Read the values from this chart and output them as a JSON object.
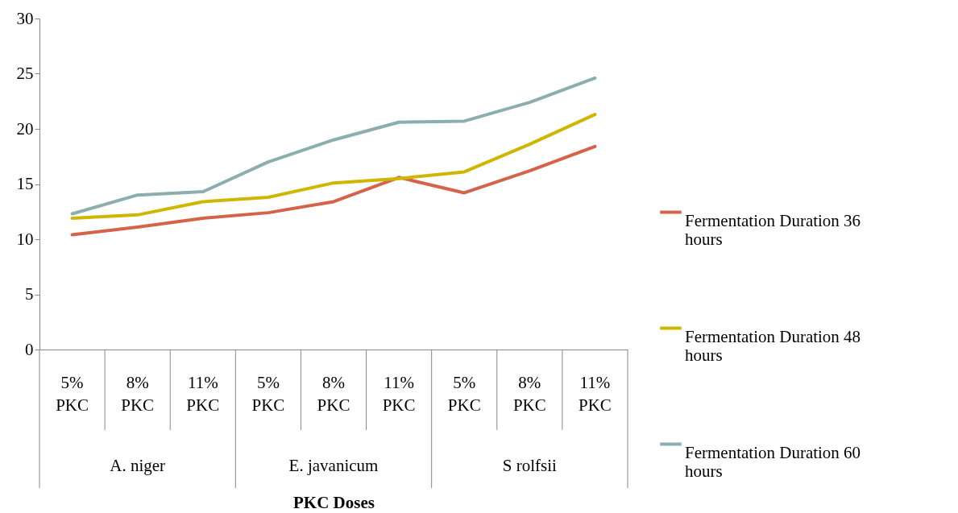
{
  "chart_data": {
    "type": "line",
    "xlabel": "PKC Doses",
    "categories": [
      "5% PKC",
      "8% PKC",
      "11% PKC",
      "5% PKC",
      "8% PKC",
      "11% PKC",
      "5% PKC",
      "8% PKC",
      "11% PKC"
    ],
    "annotations": [
      "A. niger",
      "E. javanicum",
      "S rolfsii"
    ],
    "series": [
      {
        "name": "Fermentation Duration 36 hours",
        "color": "#d4634a",
        "values": [
          10.4,
          11.1,
          11.9,
          12.4,
          13.4,
          15.6,
          14.2,
          16.2,
          18.4
        ]
      },
      {
        "name": "Fermentation Duration 48 hours",
        "color": "#cfb600",
        "values": [
          11.9,
          12.2,
          13.4,
          13.8,
          15.1,
          15.5,
          16.1,
          18.6,
          21.3
        ]
      },
      {
        "name": "Fermentation Duration 60 hours",
        "color": "#8caeae",
        "values": [
          12.3,
          14.0,
          14.3,
          17.0,
          19.0,
          20.6,
          20.7,
          22.4,
          24.6
        ]
      }
    ],
    "ylim": [
      0,
      30
    ],
    "yticks": [
      0,
      5,
      10,
      15,
      20,
      25,
      30
    ],
    "grid": false,
    "legend": "right",
    "line_style": "solid",
    "marker": "none"
  }
}
